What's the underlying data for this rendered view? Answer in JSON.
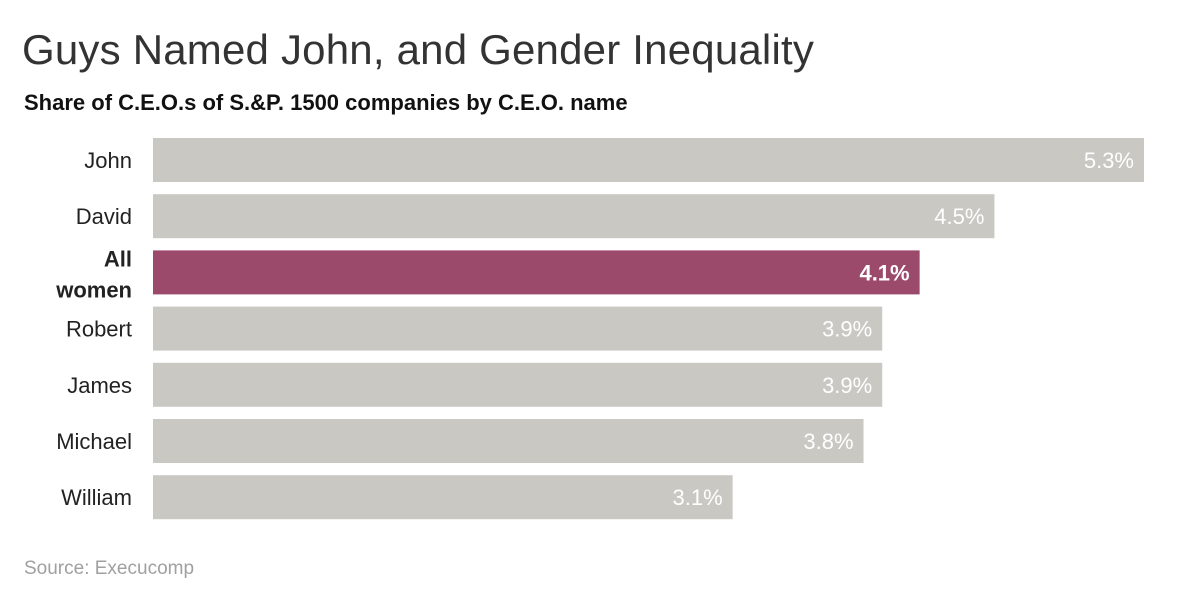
{
  "title": "Guys Named John, and Gender Inequality",
  "subtitle": "Share of C.E.O.s of S.&P. 1500 companies by C.E.O. name",
  "source": "Source: Execucomp",
  "colors": {
    "bar": "#c9c8c3",
    "highlight": "#9b4a6b",
    "label": "#ffffff",
    "category": "#222222"
  },
  "chart_data": {
    "type": "bar",
    "orientation": "horizontal",
    "categories": [
      "John",
      "David",
      "All women",
      "Robert",
      "James",
      "Michael",
      "William"
    ],
    "values": [
      5.3,
      4.5,
      4.1,
      3.9,
      3.9,
      3.8,
      3.1
    ],
    "value_labels": [
      "5.3%",
      "4.5%",
      "4.1%",
      "3.9%",
      "3.9%",
      "3.8%",
      "3.1%"
    ],
    "highlight": "All women",
    "unit": "%",
    "title": "Guys Named John, and Gender Inequality",
    "subtitle": "Share of C.E.O.s of S.&P. 1500 companies by C.E.O. name",
    "xlim": [
      0,
      5.3
    ],
    "grid": false
  }
}
